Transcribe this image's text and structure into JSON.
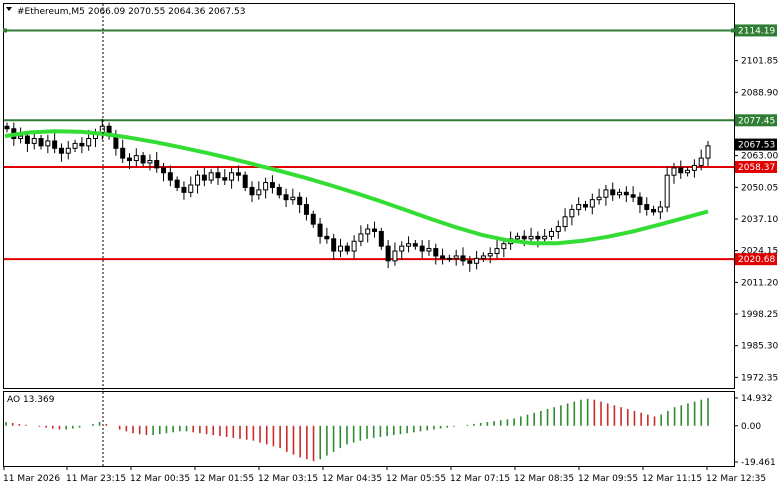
{
  "header": {
    "symbol": "#Ethereum,M5",
    "ohlc": "2066.09 2070.55 2064.36 2067.53"
  },
  "colors": {
    "bull": "#ffffff",
    "bear": "#000000",
    "ma": "#33dd33",
    "green_line": "#2e7d32",
    "red_line": "#e00000",
    "ao_up": "#2e8b2e",
    "ao_down": "#cc2a2a",
    "price_label": "#000000"
  },
  "chart_data": {
    "type": "candlestick",
    "ylim": [
      1968,
      2125
    ],
    "y_ticks": [
      "2101.85",
      "2088.90",
      "2063.00",
      "2050.05",
      "2037.10",
      "2024.15",
      "2011.20",
      "1998.25",
      "1985.30",
      "1972.35"
    ],
    "price_labels": [
      {
        "name": "resistance-top",
        "value": 2114.19,
        "text": "2114.19",
        "color": "#2e7d32"
      },
      {
        "name": "resistance",
        "value": 2077.45,
        "text": "2077.45",
        "color": "#2e7d32"
      },
      {
        "name": "current-price",
        "value": 2067.53,
        "text": "2067.53",
        "color": "#000000"
      },
      {
        "name": "support",
        "value": 2058.37,
        "text": "2058.37",
        "color": "#e00000"
      },
      {
        "name": "support-low",
        "value": 2020.68,
        "text": "2020.68",
        "color": "#e00000"
      }
    ],
    "x_labels": [
      "11 Mar 2026",
      "11 Mar 23:15",
      "12 Mar 00:35",
      "12 Mar 01:55",
      "12 Mar 03:15",
      "12 Mar 04:35",
      "12 Mar 05:55",
      "12 Mar 07:15",
      "12 Mar 08:35",
      "12 Mar 09:55",
      "12 Mar 11:15",
      "12 Mar 12:35"
    ],
    "closes": [
      2074,
      2070,
      2071,
      2068,
      2070,
      2067,
      2069,
      2066,
      2064,
      2066,
      2068,
      2067,
      2070,
      2072,
      2075,
      2071,
      2066,
      2062,
      2061,
      2063,
      2060,
      2061,
      2058,
      2056,
      2053,
      2050,
      2048,
      2051,
      2055,
      2053,
      2056,
      2054,
      2053,
      2056,
      2055,
      2050,
      2047,
      2049,
      2052,
      2050,
      2047,
      2045,
      2046,
      2043,
      2039,
      2035,
      2030,
      2029,
      2024,
      2026,
      2024,
      2028,
      2031,
      2033,
      2032,
      2026,
      2020,
      2024,
      2026,
      2027,
      2026,
      2024,
      2025,
      2022,
      2021,
      2021,
      2022,
      2020,
      2019,
      2021,
      2022,
      2023,
      2025,
      2027,
      2029,
      2030,
      2029,
      2030,
      2029,
      2030,
      2032,
      2034,
      2038,
      2041,
      2043,
      2042,
      2045,
      2046,
      2049,
      2047,
      2048,
      2047,
      2046,
      2043,
      2041,
      2040,
      2042,
      2055,
      2058,
      2056,
      2057,
      2059,
      2062,
      2067
    ],
    "ma": [
      2071,
      2072.5,
      2073,
      2072.8,
      2071.8,
      2070.3,
      2068.5,
      2066.4,
      2064.2,
      2061.8,
      2059.2,
      2056.6,
      2053.8,
      2050.8,
      2047.6,
      2044.2,
      2040.6,
      2037.0,
      2033.6,
      2030.6,
      2028.4,
      2027.2,
      2027.2,
      2028.2,
      2029.8,
      2032.0,
      2034.6,
      2037.4,
      2040.2
    ],
    "ao": {
      "ylim": [
        -19.461,
        14.932
      ],
      "y_ticks": [
        "14.932",
        "0.00",
        "-19.461"
      ],
      "values": [
        2,
        1.5,
        1,
        0.5,
        0,
        -0.5,
        -1,
        -1.5,
        -2,
        -2,
        -1.5,
        -1,
        0,
        1,
        2,
        1,
        0,
        -2,
        -3,
        -4,
        -4.5,
        -5,
        -5,
        -4.5,
        -4,
        -3.5,
        -3,
        -3,
        -3.5,
        -4,
        -4.5,
        -5,
        -5.5,
        -6,
        -6.5,
        -7,
        -7.5,
        -8,
        -9,
        -10,
        -11,
        -12,
        -14,
        -15.5,
        -17,
        -18,
        -19,
        -18,
        -16,
        -14,
        -12,
        -10,
        -9,
        -8,
        -7,
        -6.5,
        -6,
        -5.5,
        -5,
        -4.5,
        -4,
        -3.5,
        -3,
        -2.5,
        -2,
        -1.5,
        -1,
        -0.5,
        0,
        0.5,
        1,
        1.5,
        2,
        2.5,
        3,
        3.5,
        4,
        5,
        6,
        7,
        8,
        9,
        10,
        11,
        12,
        13,
        14,
        14.5,
        14,
        13,
        12,
        11,
        10,
        9,
        8,
        7,
        6,
        5,
        6,
        8,
        10,
        11,
        12,
        13,
        14,
        14.9
      ]
    }
  }
}
